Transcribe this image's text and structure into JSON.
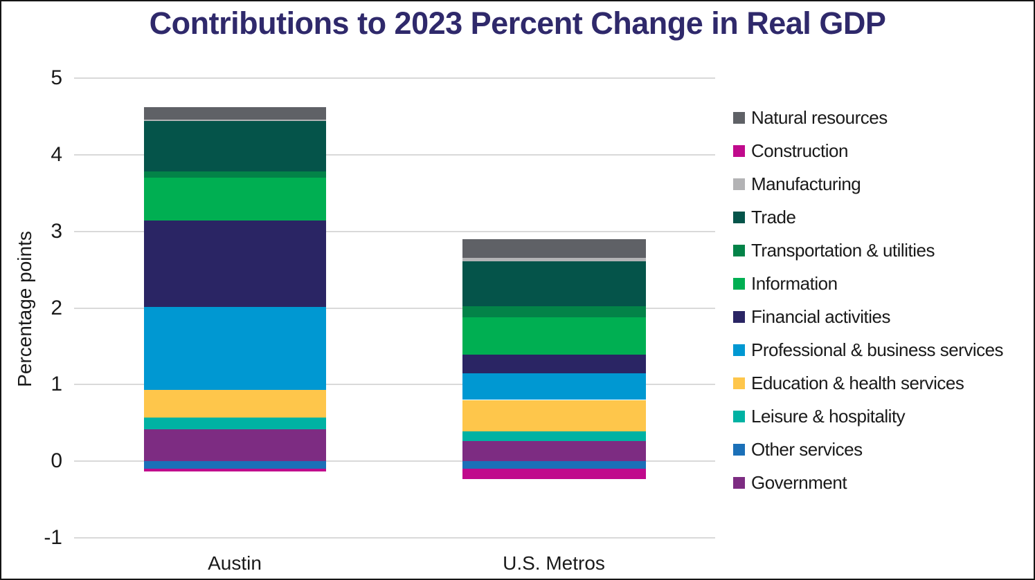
{
  "title": "Contributions to 2023 Percent Change in Real GDP",
  "title_color": "#2F296B",
  "axes": {
    "ylabel": "Percentage points",
    "ytick_labels": [
      "5",
      "4",
      "3",
      "2",
      "1",
      "0",
      "-1"
    ]
  },
  "chart_data": {
    "type": "bar",
    "stacked": true,
    "title": "Contributions to 2023 Percent Change in Real GDP",
    "xlabel": "",
    "ylabel": "Percentage points",
    "categories": [
      "Austin",
      "U.S. Metros"
    ],
    "ylim": [
      -1,
      5
    ],
    "yticks": [
      5,
      4,
      3,
      2,
      1,
      0,
      -1
    ],
    "grid": "horizontal gridlines on",
    "gridline_color": "#D9D9D9",
    "legend_position": "right",
    "series": [
      {
        "name": "Natural resources",
        "color": "#5F6166",
        "values": [
          0.16,
          0.25
        ]
      },
      {
        "name": "Construction",
        "color": "#C00A8C",
        "values": [
          -0.03,
          -0.13
        ]
      },
      {
        "name": "Manufacturing",
        "color": "#B3B3B5",
        "values": [
          0.02,
          0.04
        ]
      },
      {
        "name": "Trade",
        "color": "#05544A",
        "values": [
          0.66,
          0.59
        ]
      },
      {
        "name": "Transportation & utilities",
        "color": "#038348",
        "values": [
          0.08,
          0.14
        ]
      },
      {
        "name": "Information",
        "color": "#00AF52",
        "values": [
          0.56,
          0.49
        ]
      },
      {
        "name": "Financial activities",
        "color": "#2A2564",
        "values": [
          1.13,
          0.24
        ]
      },
      {
        "name": "Professional & business services",
        "color": "#0098D2",
        "values": [
          1.08,
          0.35
        ]
      },
      {
        "name": "Education & health services",
        "color": "#FEC64B",
        "values": [
          0.36,
          0.41
        ]
      },
      {
        "name": "Leisure & hospitality",
        "color": "#00B2A3",
        "values": [
          0.15,
          0.13
        ]
      },
      {
        "name": "Other services",
        "color": "#1B70B8",
        "values": [
          -0.1,
          -0.1
        ]
      },
      {
        "name": "Government",
        "color": "#7D2C82",
        "values": [
          0.42,
          0.26
        ]
      }
    ],
    "totals_note": {
      "Austin_bar_top": 4.62,
      "US_Metros_bar_top": 2.9
    }
  }
}
